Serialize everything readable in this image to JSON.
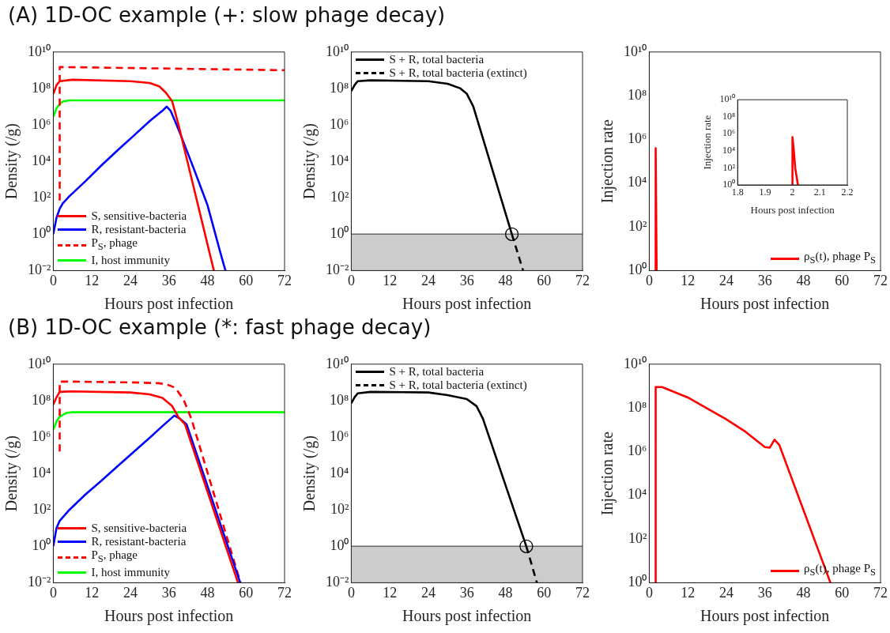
{
  "chart_data": [
    {
      "type": "line",
      "title": "(A) 1D-OC example (+: slow phage decay)",
      "xlabel": "Hours post infection",
      "ylabel": "Density (/g)",
      "log": "y",
      "xlim": [
        0,
        72
      ],
      "xticks": [
        0,
        12,
        24,
        36,
        48,
        60,
        72
      ],
      "ylim": [
        0.01,
        10000000000
      ],
      "yticks": [
        {
          "value": 0.01,
          "label": "10⁻²"
        },
        {
          "value": 1,
          "label": "10⁰"
        },
        {
          "value": 100,
          "label": "10²"
        },
        {
          "value": 10000,
          "label": "10⁴"
        },
        {
          "value": 1000000,
          "label": "10⁶"
        },
        {
          "value": 100000000,
          "label": "10⁸"
        },
        {
          "value": 10000000000,
          "label": "10¹⁰"
        }
      ],
      "grid": false,
      "legend": "bottom left",
      "series": [
        {
          "name": "S, sensitive-bacteria",
          "color": "#ff0000",
          "x": [
            0,
            1,
            2,
            6,
            24,
            30,
            33,
            35,
            37,
            39,
            44.5,
            50
          ],
          "values": [
            50000000,
            150000000,
            250000000,
            300000000,
            250000000,
            200000000,
            130000000,
            60000000,
            20000000,
            1000000,
            100,
            0.01
          ]
        },
        {
          "name": "R, resistant-bacteria",
          "color": "#0000ff",
          "x": [
            0,
            1,
            2,
            3,
            5,
            10,
            15,
            20,
            25,
            30,
            34,
            35.3,
            36.5,
            38,
            40,
            44,
            48,
            52,
            53.6
          ],
          "values": [
            1,
            8,
            25,
            50,
            120,
            800,
            6000,
            40000,
            250000,
            1600000,
            6000000,
            10000000,
            6000000,
            1500000,
            200000,
            3000,
            40,
            0.1,
            0.01
          ]
        },
        {
          "name": "P$_{S}$, phage",
          "color": "#ff0000",
          "line_style": "dashed",
          "x": [
            2,
            2,
            72
          ],
          "values": [
            70,
            1500000000,
            1000000000
          ]
        },
        {
          "name": "I, host immunity",
          "color": "#00ff00",
          "x": [
            0,
            1,
            2,
            3,
            5,
            72
          ],
          "values": [
            2800000,
            8000000,
            14000000,
            19000000,
            22000000,
            22000000
          ]
        }
      ]
    },
    {
      "type": "line",
      "xlabel": "Hours post infection",
      "ylabel": "Density (/g)",
      "log": "y",
      "xlim": [
        0,
        72
      ],
      "xticks": [
        0,
        12,
        24,
        36,
        48,
        60,
        72
      ],
      "ylim": [
        0.01,
        10000000000
      ],
      "yticks": [
        {
          "value": 0.01,
          "label": "10⁻²"
        },
        {
          "value": 1,
          "label": "10⁰"
        },
        {
          "value": 100,
          "label": "10²"
        },
        {
          "value": 10000,
          "label": "10⁴"
        },
        {
          "value": 1000000,
          "label": "10⁶"
        },
        {
          "value": 100000000,
          "label": "10⁸"
        },
        {
          "value": 10000000000,
          "label": "10¹⁰"
        }
      ],
      "grid": false,
      "legend": "top left",
      "bands": [
        {
          "axis": "y",
          "from": 0.01,
          "to": 1,
          "color": "#cccccc"
        }
      ],
      "ref_lines": [
        {
          "axis": "y",
          "value": 1,
          "color": "#666666"
        }
      ],
      "series": [
        {
          "name": "S + R, total bacteria",
          "color": "#000000",
          "x": [
            0,
            1,
            2,
            6,
            24,
            30,
            34,
            36,
            38,
            50
          ],
          "values": [
            70000000,
            150000000,
            250000000,
            280000000,
            250000000,
            180000000,
            100000000,
            50000000,
            10000000,
            1
          ]
        },
        {
          "name": "S + R, total bacteria (extinct)",
          "color": "#000000",
          "line_style": "dashed",
          "x": [
            50,
            53.5
          ],
          "values": [
            1,
            0.01
          ]
        },
        {
          "type": "scatter",
          "marker": "circle",
          "color": "#000000",
          "x": [
            50
          ],
          "values": [
            1
          ]
        }
      ]
    },
    {
      "type": "line",
      "xlabel": "Hours post infection",
      "ylabel": "Injection rate",
      "log": "y",
      "xlim": [
        0,
        72
      ],
      "xticks": [
        0,
        12,
        24,
        36,
        48,
        60,
        72
      ],
      "ylim": [
        1,
        10000000000
      ],
      "yticks": [
        {
          "value": 1,
          "label": "10⁰"
        },
        {
          "value": 100,
          "label": "10²"
        },
        {
          "value": 10000,
          "label": "10⁴"
        },
        {
          "value": 1000000,
          "label": "10⁶"
        },
        {
          "value": 100000000,
          "label": "10⁸"
        },
        {
          "value": 10000000000,
          "label": "10¹⁰"
        }
      ],
      "grid": false,
      "legend": "bottom right",
      "series": [
        {
          "name": "ρ$_{S}$(t), phage P$_{S}$",
          "color": "#ff0000",
          "x": [
            1.9,
            2,
            2.3
          ],
          "values": [
            1,
            400000,
            1
          ]
        }
      ]
    },
    {
      "type": "line",
      "xlabel": "Hours post infection",
      "ylabel": "Injection rate",
      "log": "y",
      "xlim": [
        1.8,
        2.2
      ],
      "xticks": [
        1.8,
        1.9,
        2,
        2.1,
        2.2
      ],
      "ylim": [
        1,
        10000000000
      ],
      "yticks": [
        {
          "value": 1,
          "label": "10⁰"
        },
        {
          "value": 100,
          "label": "10²"
        },
        {
          "value": 10000,
          "label": "10⁴"
        },
        {
          "value": 1000000,
          "label": "10⁶"
        },
        {
          "value": 100000000,
          "label": "10⁸"
        },
        {
          "value": 10000000000,
          "label": "10¹⁰"
        }
      ],
      "grid": false,
      "series": [
        {
          "color": "#ff0000",
          "x": [
            2,
            2,
            2.005,
            2.01,
            2.02
          ],
          "values": [
            1,
            400000,
            10000,
            100,
            1
          ]
        }
      ]
    },
    {
      "type": "line",
      "title": "(B) 1D-OC example (*: fast phage decay)",
      "xlabel": "Hours post infection",
      "ylabel": "Density (/g)",
      "log": "y",
      "xlim": [
        0,
        72
      ],
      "xticks": [
        0,
        12,
        24,
        36,
        48,
        60,
        72
      ],
      "ylim": [
        0.01,
        10000000000
      ],
      "yticks": [
        {
          "value": 0.01,
          "label": "10⁻²"
        },
        {
          "value": 1,
          "label": "10⁰"
        },
        {
          "value": 100,
          "label": "10²"
        },
        {
          "value": 10000,
          "label": "10⁴"
        },
        {
          "value": 1000000,
          "label": "10⁶"
        },
        {
          "value": 100000000,
          "label": "10⁸"
        },
        {
          "value": 10000000000,
          "label": "10¹⁰"
        }
      ],
      "grid": false,
      "legend": "bottom left",
      "series": [
        {
          "name": "S, sensitive-bacteria",
          "color": "#ff0000",
          "x": [
            0,
            1,
            2,
            6,
            24,
            30,
            34,
            37,
            39,
            41,
            57.5
          ],
          "values": [
            60000000,
            150000000,
            300000000,
            320000000,
            280000000,
            220000000,
            140000000,
            50000000,
            12000000,
            5000000,
            0.01
          ]
        },
        {
          "name": "R, resistant-bacteria",
          "color": "#0000ff",
          "x": [
            0,
            1,
            2,
            5,
            10,
            15,
            20,
            25,
            30,
            34,
            37.7,
            39.5,
            41.5,
            58.2
          ],
          "values": [
            1,
            10,
            25,
            100,
            700,
            4000,
            25000,
            150000,
            900000,
            4000000,
            15000000,
            10000000,
            5000000,
            0.01
          ]
        },
        {
          "name": "P$_{S}$, phage",
          "color": "#ff0000",
          "line_style": "dashed",
          "x": [
            2,
            2,
            6,
            24,
            33,
            36,
            38,
            40.5,
            43,
            58.3
          ],
          "values": [
            160000,
            1100000000,
            1100000000,
            1000000000,
            900000000,
            700000000,
            500000000,
            120000000,
            10000000,
            0.01
          ]
        },
        {
          "name": "I, host immunity",
          "color": "#00ff00",
          "x": [
            0,
            1,
            2,
            4,
            6,
            72
          ],
          "values": [
            2500000,
            7000000,
            13000000,
            21000000,
            23000000,
            23000000
          ]
        }
      ]
    },
    {
      "type": "line",
      "xlabel": "Hours post infection",
      "ylabel": "Density (/g)",
      "log": "y",
      "xlim": [
        0,
        72
      ],
      "xticks": [
        0,
        12,
        24,
        36,
        48,
        60,
        72
      ],
      "ylim": [
        0.01,
        10000000000
      ],
      "yticks": [
        {
          "value": 0.01,
          "label": "10⁻²"
        },
        {
          "value": 1,
          "label": "10⁰"
        },
        {
          "value": 100,
          "label": "10²"
        },
        {
          "value": 10000,
          "label": "10⁴"
        },
        {
          "value": 1000000,
          "label": "10⁶"
        },
        {
          "value": 100000000,
          "label": "10⁸"
        },
        {
          "value": 10000000000,
          "label": "10¹⁰"
        }
      ],
      "grid": false,
      "legend": "top left",
      "bands": [
        {
          "axis": "y",
          "from": 0.01,
          "to": 1,
          "color": "#cccccc"
        }
      ],
      "ref_lines": [
        {
          "axis": "y",
          "value": 1,
          "color": "#666666"
        }
      ],
      "series": [
        {
          "name": "S + R, total bacteria",
          "color": "#000000",
          "x": [
            0,
            1,
            2,
            6,
            24,
            30,
            36,
            39,
            41,
            54.5
          ],
          "values": [
            70000000,
            150000000,
            250000000,
            300000000,
            280000000,
            200000000,
            120000000,
            50000000,
            10000000,
            1
          ]
        },
        {
          "name": "S + R, total bacteria (extinct)",
          "color": "#000000",
          "line_style": "dashed",
          "x": [
            54.5,
            57.8
          ],
          "values": [
            1,
            0.01
          ]
        },
        {
          "type": "scatter",
          "marker": "circle",
          "color": "#000000",
          "x": [
            54.5
          ],
          "values": [
            1
          ]
        }
      ]
    },
    {
      "type": "line",
      "xlabel": "Hours post infection",
      "ylabel": "Injection rate",
      "log": "y",
      "xlim": [
        0,
        72
      ],
      "xticks": [
        0,
        12,
        24,
        36,
        48,
        60,
        72
      ],
      "ylim": [
        1,
        10000000000
      ],
      "yticks": [
        {
          "value": 1,
          "label": "10⁰"
        },
        {
          "value": 100,
          "label": "10²"
        },
        {
          "value": 10000,
          "label": "10⁴"
        },
        {
          "value": 1000000,
          "label": "10⁶"
        },
        {
          "value": 100000000,
          "label": "10⁸"
        },
        {
          "value": 10000000000,
          "label": "10¹⁰"
        }
      ],
      "grid": false,
      "legend": "bottom right",
      "series": [
        {
          "name": "ρ$_{S}$(t), phage P$_{S}$",
          "color": "#ff0000",
          "x": [
            2,
            2,
            4,
            12,
            24,
            30,
            36,
            37.5,
            39,
            40.5,
            56.4
          ],
          "values": [
            1,
            900000000,
            900000000,
            300000000,
            30000000,
            8000000,
            1600000,
            1500000,
            3500000,
            2000000,
            1
          ]
        }
      ]
    }
  ]
}
